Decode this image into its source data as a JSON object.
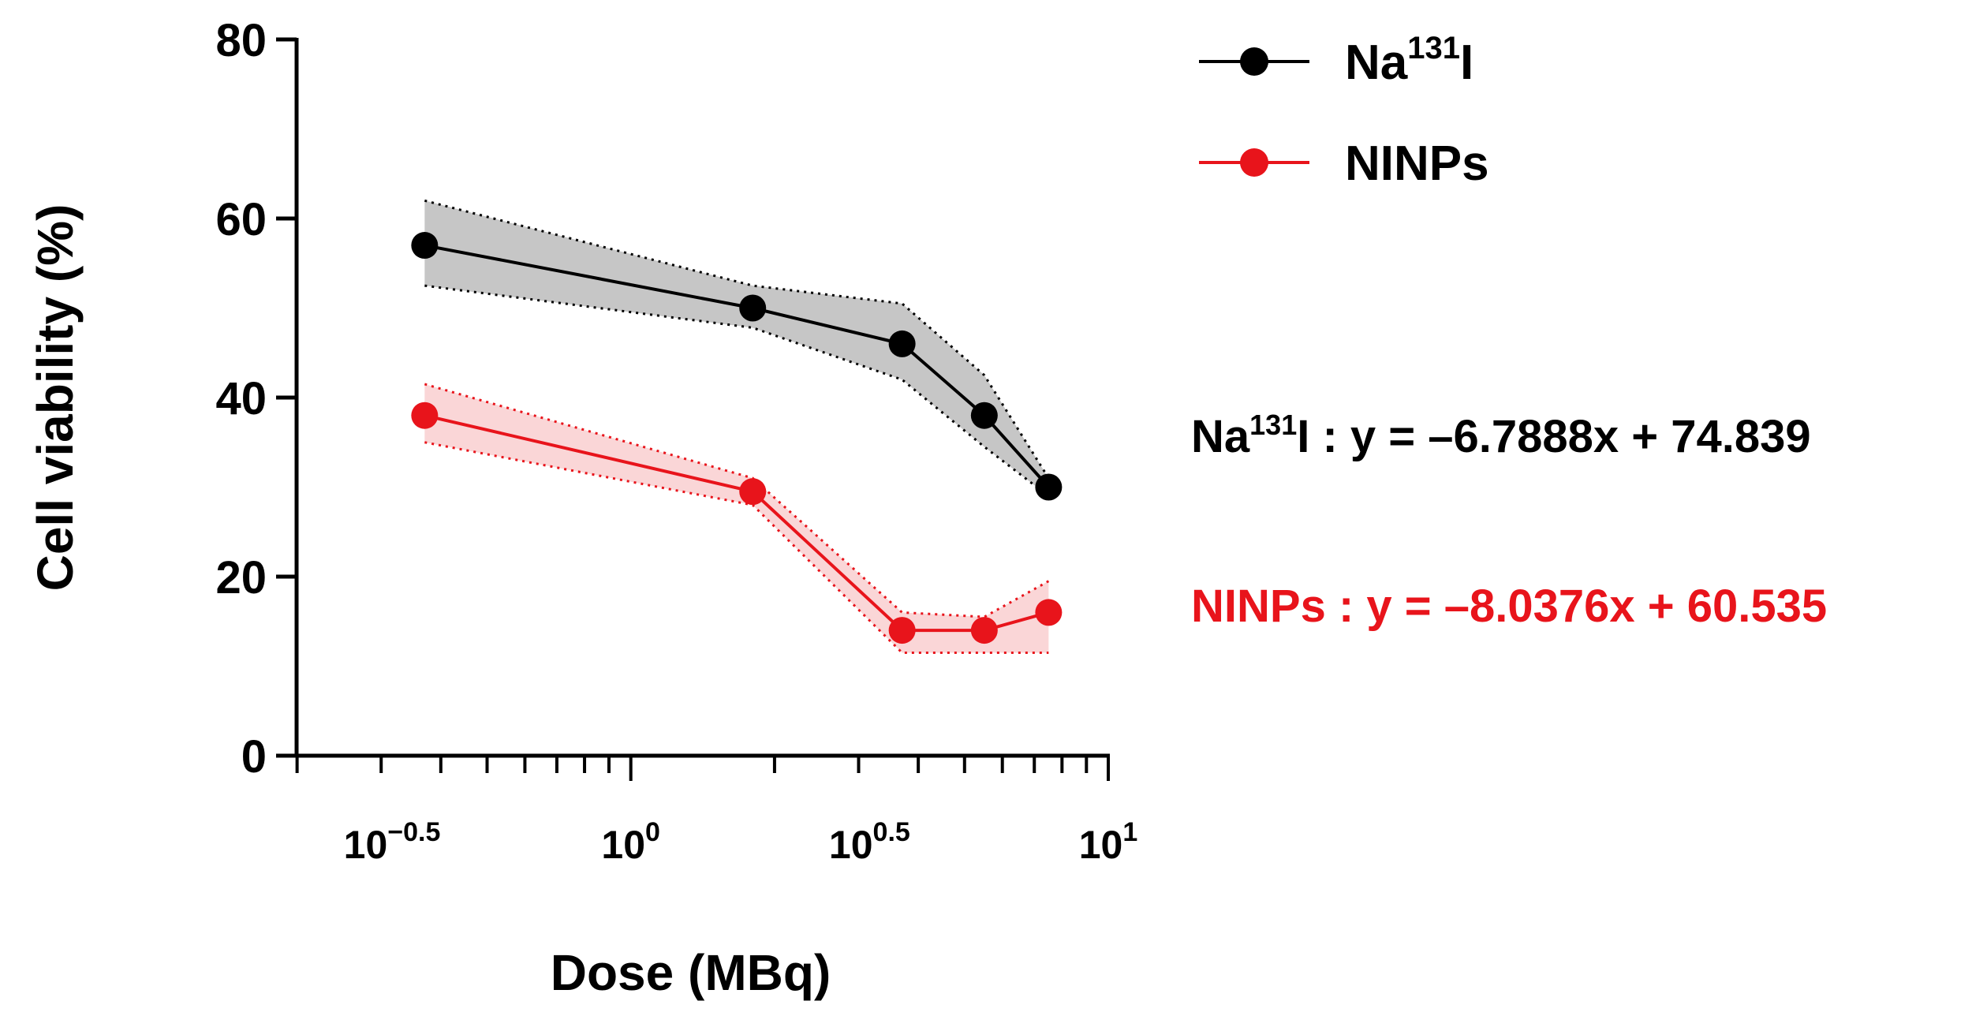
{
  "chart_data": {
    "type": "line",
    "title": "",
    "xlabel": "Dose (MBq)",
    "ylabel": "Cell viability (%)",
    "x_scale": "log10",
    "xlim_log10": [
      -0.7,
      1.0
    ],
    "ylim": [
      0,
      80
    ],
    "x_ticks": [
      {
        "log10": -0.5,
        "base": "10",
        "exp": "−0.5"
      },
      {
        "log10": 0.0,
        "base": "10",
        "exp": "0"
      },
      {
        "log10": 0.5,
        "base": "10",
        "exp": "0.5"
      },
      {
        "log10": 1.0,
        "base": "10",
        "exp": "1"
      }
    ],
    "y_ticks": [
      0,
      20,
      40,
      60,
      80
    ],
    "grid": false,
    "legend_position": "top-right",
    "series": [
      {
        "name": "Na131I",
        "name_base": "Na",
        "name_sup": "131",
        "name_tail": "I",
        "color": "#000000",
        "band_color": "#b3b3b3",
        "x": [
          0.37,
          1.8,
          3.7,
          5.5,
          7.5
        ],
        "y": [
          57,
          50,
          46,
          38,
          30
        ],
        "upper": [
          62,
          52.5,
          50.5,
          42.5,
          31
        ],
        "lower": [
          52.5,
          47.8,
          42,
          34.5,
          29
        ]
      },
      {
        "name": "NINPs",
        "name_base": "NINPs",
        "name_sup": "",
        "name_tail": "",
        "color": "#e8141b",
        "band_color": "#f8c4c6",
        "x": [
          0.37,
          1.8,
          3.7,
          5.5,
          7.5
        ],
        "y": [
          38,
          29.5,
          14,
          14,
          16
        ],
        "upper": [
          41.5,
          31,
          16,
          15.5,
          19.5
        ],
        "lower": [
          35,
          28,
          11.5,
          11.5,
          11.5
        ]
      }
    ],
    "annotations": [
      {
        "prefix": "Na",
        "sup": "131",
        "text": "I : y = –6.7888x + 74.839",
        "color": "#000000"
      },
      {
        "prefix": "NINPs",
        "sup": "",
        "text": " : y = –8.0376x + 60.535",
        "color": "#e8141b"
      }
    ]
  }
}
